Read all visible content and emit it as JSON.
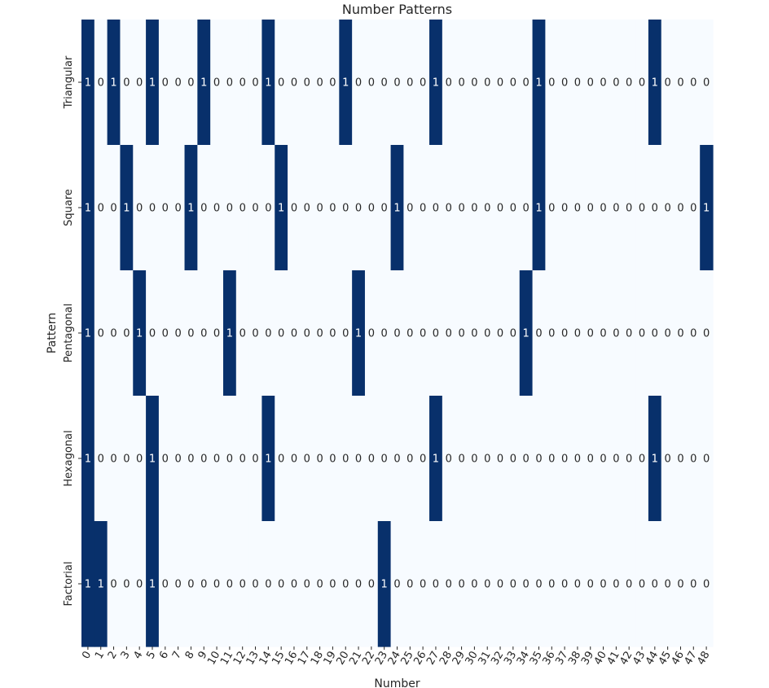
{
  "chart_data": {
    "type": "heatmap",
    "title": "Number Patterns",
    "xlabel": "Number",
    "ylabel": "Pattern",
    "x_categories": [
      "0",
      "1",
      "2",
      "3",
      "4",
      "5",
      "6",
      "7",
      "8",
      "9",
      "10",
      "11",
      "12",
      "13",
      "14",
      "15",
      "16",
      "17",
      "18",
      "19",
      "20",
      "21",
      "22",
      "23",
      "24",
      "25",
      "26",
      "27",
      "28",
      "29",
      "30",
      "31",
      "32",
      "33",
      "34",
      "35",
      "36",
      "37",
      "38",
      "39",
      "40",
      "41",
      "42",
      "43",
      "44",
      "45",
      "46",
      "47",
      "48"
    ],
    "y_categories": [
      "Triangular",
      "Square",
      "Pentagonal",
      "Hexagonal",
      "Factorial"
    ],
    "values": [
      [
        1,
        0,
        1,
        0,
        0,
        1,
        0,
        0,
        0,
        1,
        0,
        0,
        0,
        0,
        1,
        0,
        0,
        0,
        0,
        0,
        1,
        0,
        0,
        0,
        0,
        0,
        0,
        1,
        0,
        0,
        0,
        0,
        0,
        0,
        0,
        1,
        0,
        0,
        0,
        0,
        0,
        0,
        0,
        0,
        1,
        0,
        0,
        0,
        0
      ],
      [
        1,
        0,
        0,
        1,
        0,
        0,
        0,
        0,
        1,
        0,
        0,
        0,
        0,
        0,
        0,
        1,
        0,
        0,
        0,
        0,
        0,
        0,
        0,
        0,
        1,
        0,
        0,
        0,
        0,
        0,
        0,
        0,
        0,
        0,
        0,
        1,
        0,
        0,
        0,
        0,
        0,
        0,
        0,
        0,
        0,
        0,
        0,
        0,
        1
      ],
      [
        1,
        0,
        0,
        0,
        1,
        0,
        0,
        0,
        0,
        0,
        0,
        1,
        0,
        0,
        0,
        0,
        0,
        0,
        0,
        0,
        0,
        1,
        0,
        0,
        0,
        0,
        0,
        0,
        0,
        0,
        0,
        0,
        0,
        0,
        1,
        0,
        0,
        0,
        0,
        0,
        0,
        0,
        0,
        0,
        0,
        0,
        0,
        0,
        0
      ],
      [
        1,
        0,
        0,
        0,
        0,
        1,
        0,
        0,
        0,
        0,
        0,
        0,
        0,
        0,
        1,
        0,
        0,
        0,
        0,
        0,
        0,
        0,
        0,
        0,
        0,
        0,
        0,
        1,
        0,
        0,
        0,
        0,
        0,
        0,
        0,
        0,
        0,
        0,
        0,
        0,
        0,
        0,
        0,
        0,
        1,
        0,
        0,
        0,
        0
      ],
      [
        1,
        1,
        0,
        0,
        0,
        1,
        0,
        0,
        0,
        0,
        0,
        0,
        0,
        0,
        0,
        0,
        0,
        0,
        0,
        0,
        0,
        0,
        0,
        1,
        0,
        0,
        0,
        0,
        0,
        0,
        0,
        0,
        0,
        0,
        0,
        0,
        0,
        0,
        0,
        0,
        0,
        0,
        0,
        0,
        0,
        0,
        0,
        0,
        0
      ]
    ],
    "colormap": "Blues",
    "color_low": "#f7fbff",
    "color_high": "#08306b",
    "annotated": true,
    "colorbar": false
  }
}
